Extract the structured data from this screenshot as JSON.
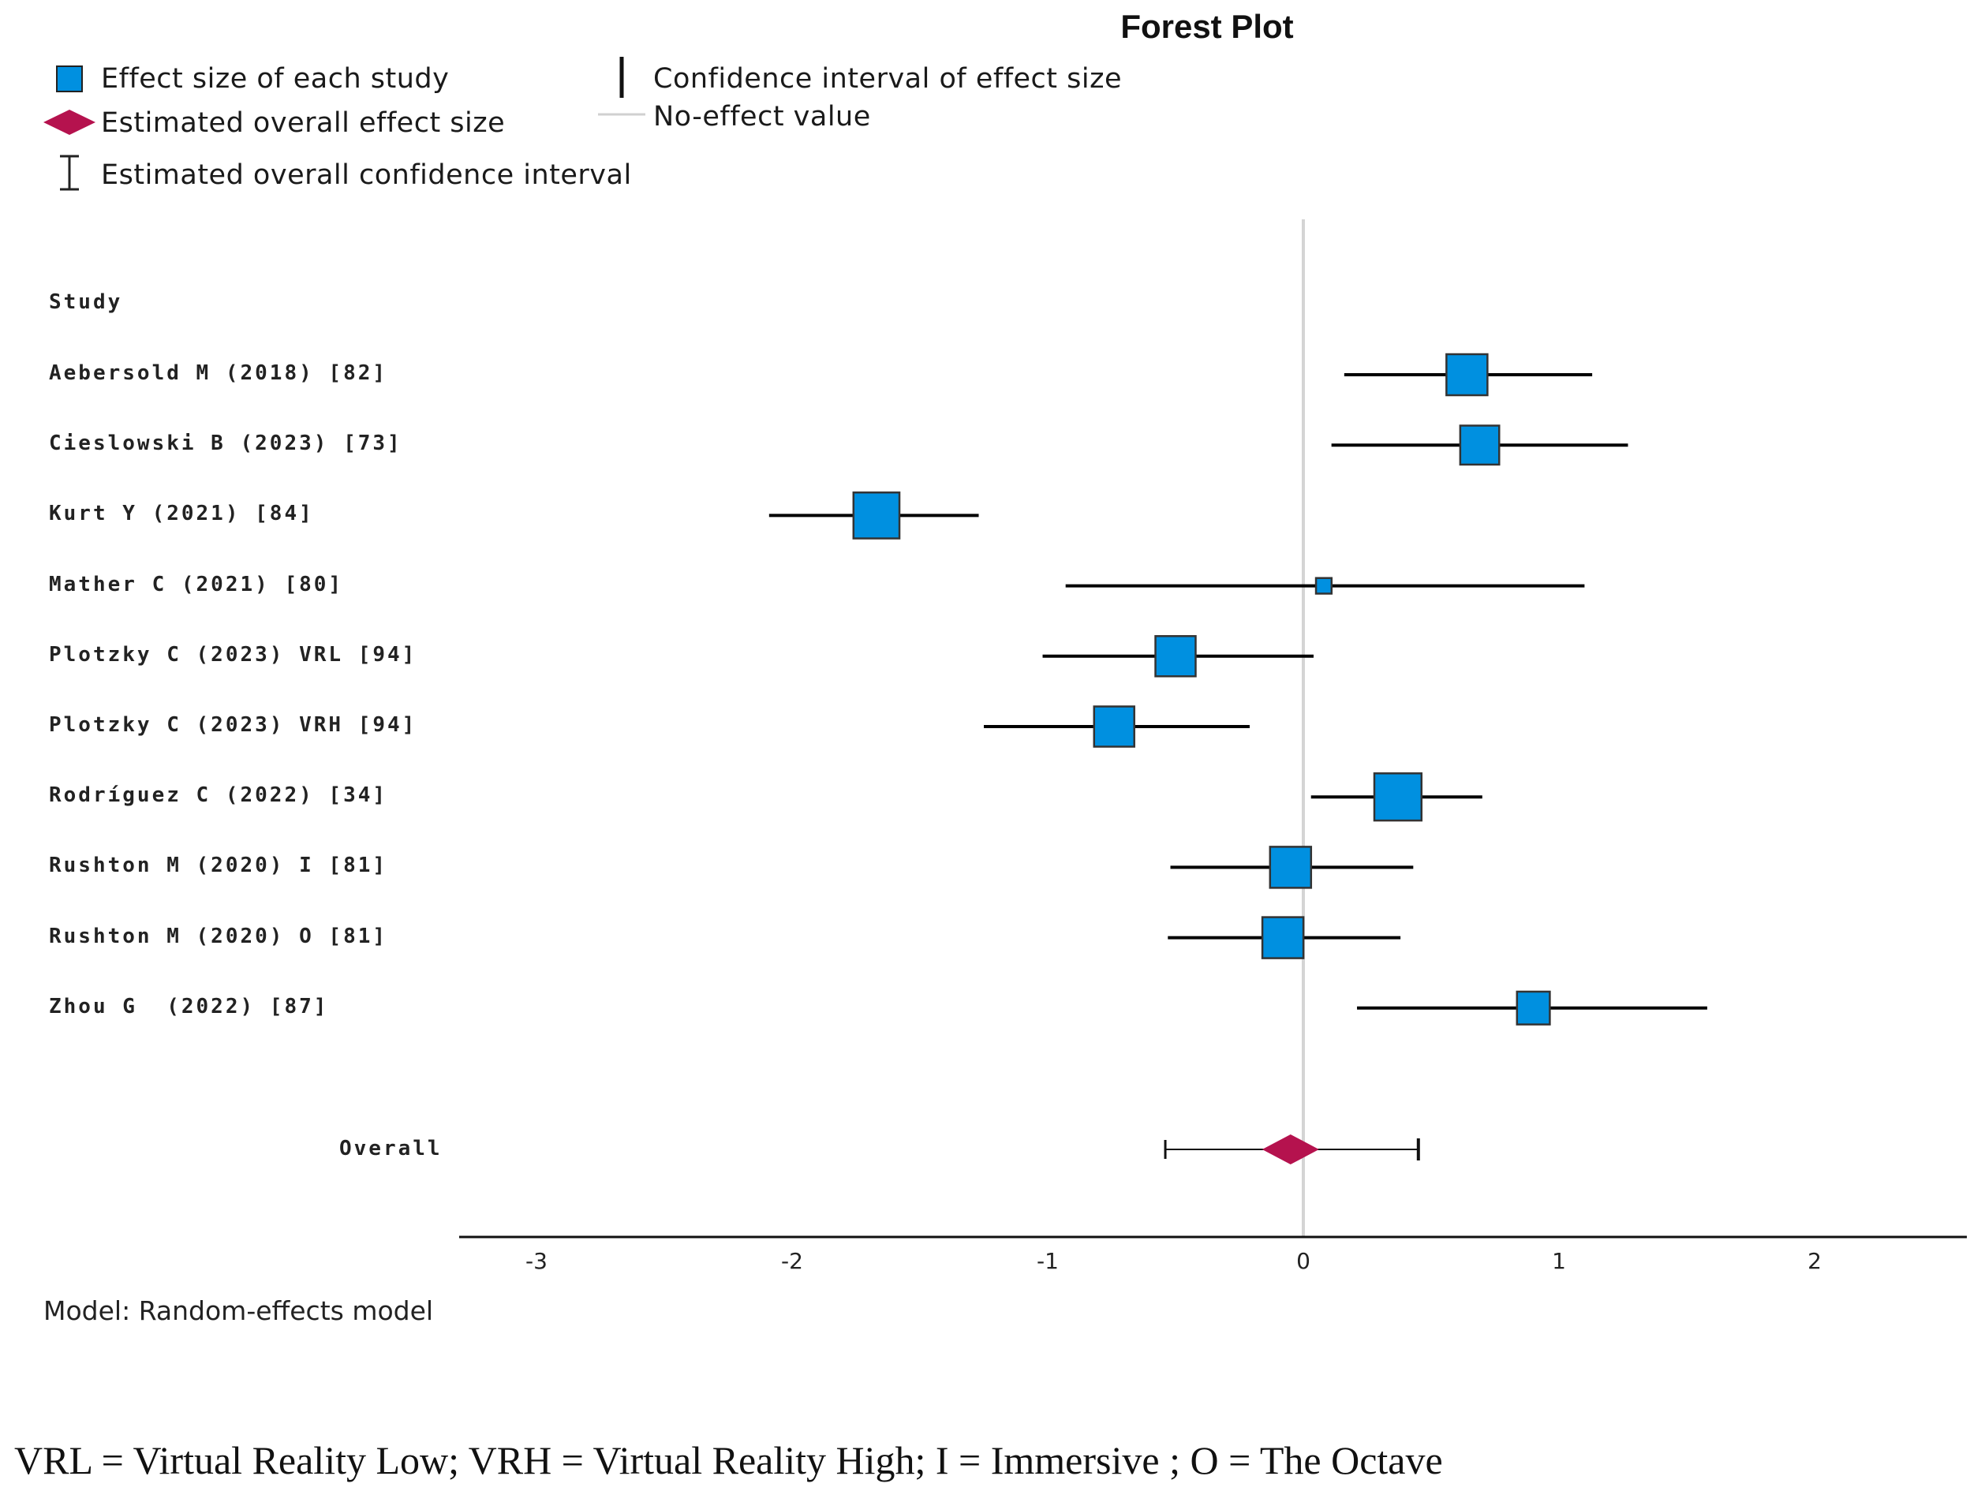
{
  "chart_data": {
    "type": "forest",
    "title": "Forest Plot",
    "legend": {
      "effect_size": "Effect size of each study",
      "overall_effect": "Estimated overall effect size",
      "overall_ci": "Estimated overall confidence interval",
      "ci": "Confidence interval of effect size",
      "no_effect": "No-effect value"
    },
    "column_header": "Study",
    "studies": [
      {
        "name": "Aebersold M (2018) [82]",
        "effect": 0.64,
        "lower": 0.16,
        "upper": 1.13,
        "weight": 1.0
      },
      {
        "name": "Cieslowski B (2023) [73]",
        "effect": 0.69,
        "lower": 0.11,
        "upper": 1.27,
        "weight": 0.95
      },
      {
        "name": "Kurt Y (2021) [84]",
        "effect": -1.67,
        "lower": -2.09,
        "upper": -1.27,
        "weight": 1.12
      },
      {
        "name": "Mather C (2021) [80]",
        "effect": 0.08,
        "lower": -0.93,
        "upper": 1.1,
        "weight": 0.38
      },
      {
        "name": "Plotzky C (2023) VRL [94]",
        "effect": -0.5,
        "lower": -1.02,
        "upper": 0.04,
        "weight": 0.98
      },
      {
        "name": "Plotzky C (2023) VRH [94]",
        "effect": -0.74,
        "lower": -1.25,
        "upper": -0.21,
        "weight": 0.98
      },
      {
        "name": "Rodríguez C (2022) [34]",
        "effect": 0.37,
        "lower": 0.03,
        "upper": 0.7,
        "weight": 1.15
      },
      {
        "name": "Rushton M (2020) I [81]",
        "effect": -0.05,
        "lower": -0.52,
        "upper": 0.43,
        "weight": 1.0
      },
      {
        "name": "Rushton M (2020) O [81]",
        "effect": -0.08,
        "lower": -0.53,
        "upper": 0.38,
        "weight": 1.0
      },
      {
        "name": "Zhou G  (2022) [87]",
        "effect": 0.9,
        "lower": 0.21,
        "upper": 1.58,
        "weight": 0.8
      }
    ],
    "overall": {
      "name": "Overall",
      "effect": -0.05,
      "lower": -0.54,
      "upper": 0.45
    },
    "no_effect_value": 0,
    "xlim": [
      -3.3,
      2.6
    ],
    "xticks": [
      -3,
      -2,
      -1,
      0,
      1,
      2
    ],
    "xtick_labels": [
      "-3",
      "-2",
      "-1",
      "0",
      "1",
      "2"
    ],
    "colors": {
      "square": "#0090e0",
      "diamond": "#b5124e",
      "line": "#000000",
      "no_effect": "#d4d4d4"
    }
  },
  "model_note": "Model: Random-effects model",
  "footnote": "VRL = Virtual Reality Low; VRH = Virtual Reality High; I = Immersive ; O = The Octave"
}
